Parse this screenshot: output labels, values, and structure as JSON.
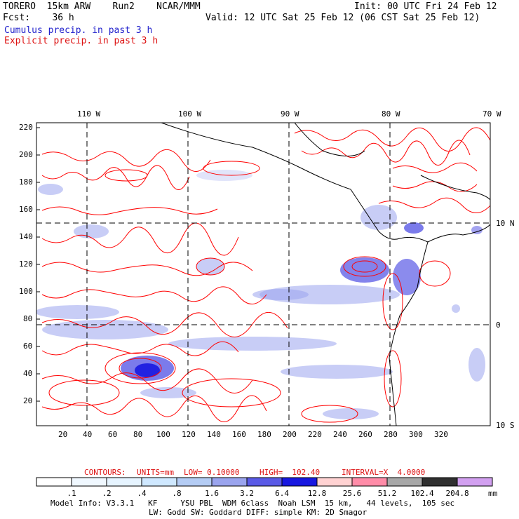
{
  "header": {
    "model": "TORERO  15km ARW    Run2    NCAR/MMM",
    "init": "Init: 00 UTC Fri 24 Feb 12",
    "fcst": "Fcst:    36 h",
    "valid": "Valid: 12 UTC Sat 25 Feb 12 (06 CST Sat 25 Feb 12)",
    "legend_cumulus": "Cumulus precip. in past 3 h",
    "legend_explicit": "Explicit precip. in past 3 h"
  },
  "map": {
    "lon_labels": [
      "110 W",
      "100 W",
      "90 W",
      "80 W",
      "70 W"
    ],
    "lat_labels": [
      "10 N",
      "0",
      "10 S"
    ],
    "y_ticks": [
      "220",
      "200",
      "180",
      "160",
      "140",
      "120",
      "100",
      "80",
      "60",
      "40",
      "20"
    ],
    "x_ticks": [
      "20",
      "40",
      "60",
      "80",
      "100",
      "120",
      "140",
      "160",
      "180",
      "200",
      "220",
      "240",
      "260",
      "280",
      "300",
      "320"
    ],
    "colors": {
      "grid": "#000000",
      "explicit_contour": "#ff0000",
      "coast": "#000000"
    }
  },
  "contours_caption": {
    "contours": "CONTOURS:",
    "units": "UNITS=mm",
    "low": "LOW= 0.10000",
    "high": "HIGH=  102.40",
    "interval": "INTERVAL=X  4.0000"
  },
  "colorbar": {
    "levels": [
      ".1",
      ".2",
      ".4",
      ".8",
      "1.6",
      "3.2",
      "6.4",
      "12.8",
      "25.6",
      "51.2",
      "102.4",
      "204.8"
    ],
    "unit": "mm",
    "colors": [
      "#ffffff",
      "#f0f8ff",
      "#e6f4ff",
      "#cfe8ff",
      "#b4ccf4",
      "#9aa4ee",
      "#5a5ae6",
      "#1818e0",
      "#ffd2d2",
      "#ff8ca8",
      "#a8a8a8",
      "#303030",
      "#d2a0f0"
    ]
  },
  "footer": {
    "line1": "Model Info: V3.3.1   KF     YSU PBL  WDM 6class  Noah LSM  15 km,   44 levels,  105 sec",
    "line2": "LW: Godd SW: Goddard DIFF: simple KM: 2D Smagor"
  }
}
